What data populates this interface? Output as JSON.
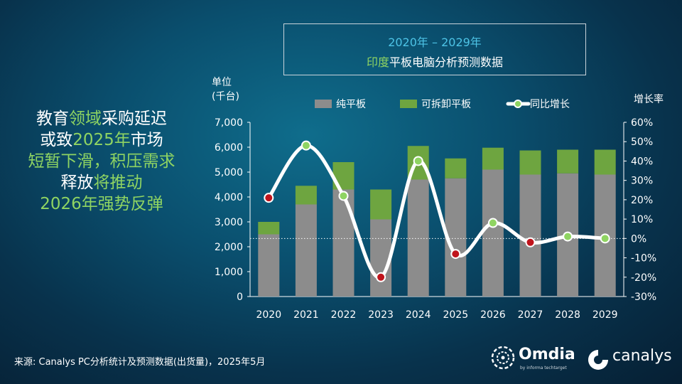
{
  "header": {
    "year_range": "2020年 – 2029年",
    "title_highlight": "印度",
    "title_rest": "平板电脑分析预测数据"
  },
  "headline": {
    "lines": [
      [
        {
          "t": "教育",
          "c": "w"
        },
        {
          "t": "领域",
          "c": "g"
        },
        {
          "t": "采购延迟",
          "c": "w"
        }
      ],
      [
        {
          "t": "或致",
          "c": "w"
        },
        {
          "t": "2025年",
          "c": "g"
        },
        {
          "t": "市场",
          "c": "w"
        }
      ],
      [
        {
          "t": "短暂下滑，积压需求",
          "c": "g"
        }
      ],
      [
        {
          "t": "释放",
          "c": "w"
        },
        {
          "t": "将推动",
          "c": "g"
        }
      ],
      [
        {
          "t": "2026年强势反弹",
          "c": "g"
        }
      ]
    ]
  },
  "source": "来源: Canalys PC分析统计及预测数据(出货量)，2025年5月",
  "logos": {
    "omdia": "Omdia",
    "omdia_sub": "by informa techtarget",
    "canalys": "canalys"
  },
  "chart_data": {
    "type": "bar",
    "stacked": true,
    "categories": [
      "2020",
      "2021",
      "2022",
      "2023",
      "2024",
      "2025",
      "2026",
      "2027",
      "2028",
      "2029"
    ],
    "series": [
      {
        "name": "纯平板",
        "values": [
          2500,
          3700,
          4300,
          3100,
          4700,
          4750,
          5100,
          4900,
          4950,
          4900
        ],
        "color": "#8c8c8c"
      },
      {
        "name": "可拆卸平板",
        "values": [
          500,
          750,
          1100,
          1200,
          1350,
          800,
          880,
          970,
          950,
          1000
        ],
        "color": "#6ea540"
      }
    ],
    "line": {
      "name": "同比增长",
      "values": [
        21,
        48,
        22,
        -20,
        40,
        -8,
        8,
        -2,
        1,
        0
      ],
      "color": "#ffffff",
      "marker_colors": [
        "#c0141c",
        "#8fd462",
        "#8fd462",
        "#c0141c",
        "#8fd462",
        "#c0141c",
        "#8fd462",
        "#c0141c",
        "#8fd462",
        "#8fd462"
      ]
    },
    "ylabel_left": [
      "单位",
      "(千台)"
    ],
    "ylabel_right": "增长率",
    "ylim_left": [
      0,
      7000
    ],
    "yticks_left": [
      "0",
      "1,000",
      "2,000",
      "3,000",
      "4,000",
      "5,000",
      "6,000",
      "7,000"
    ],
    "ylim_right": [
      -30,
      60
    ],
    "yticks_right": [
      "-30%",
      "-20%",
      "-10%",
      "0%",
      "10%",
      "20%",
      "30%",
      "40%",
      "50%",
      "60%"
    ],
    "legend_position": "top",
    "reference_line_at": 0
  }
}
